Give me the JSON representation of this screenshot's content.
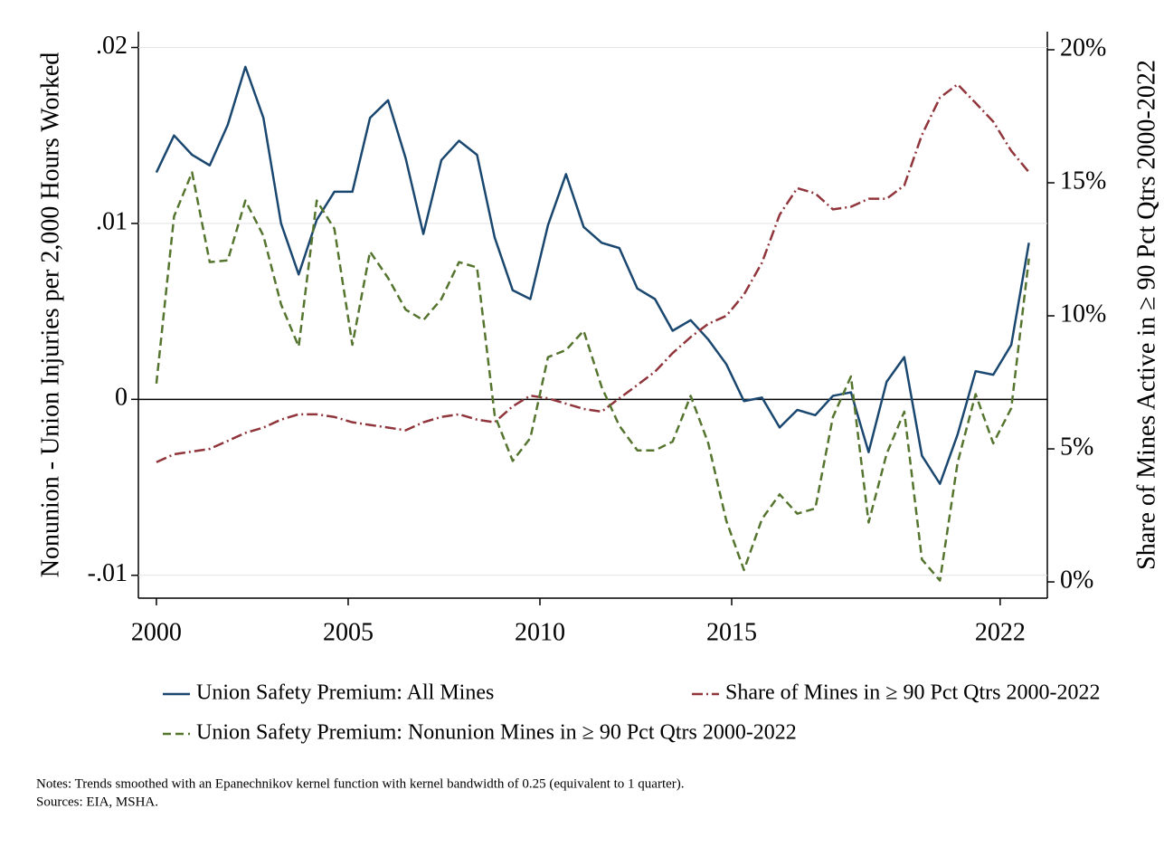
{
  "chart_data": {
    "type": "line",
    "y_label": "Nonunion - Union Injuries per 2,000 Hours Worked",
    "y2_label": "Share of Mines Active in ≥ 90 Pct Qtrs 2000-2022",
    "x": [
      2000.0,
      2000.46,
      2000.93,
      2001.39,
      2001.86,
      2002.32,
      2002.79,
      2003.25,
      2003.71,
      2004.18,
      2004.64,
      2005.11,
      2005.57,
      2006.04,
      2006.5,
      2006.96,
      2007.43,
      2007.89,
      2008.36,
      2008.82,
      2009.29,
      2009.75,
      2010.21,
      2010.68,
      2011.14,
      2011.61,
      2012.07,
      2012.54,
      2013.0,
      2013.46,
      2013.93,
      2014.39,
      2014.86,
      2015.32,
      2015.79,
      2016.25,
      2016.71,
      2017.18,
      2017.64,
      2018.11,
      2018.57,
      2019.04,
      2019.5,
      2019.96,
      2020.43,
      2020.89,
      2021.36,
      2021.82,
      2022.29,
      2022.75
    ],
    "series": [
      {
        "name": "Union Safety Premium: All Mines",
        "color": "#1a476f",
        "dash": "none",
        "values": [
          0.0129,
          0.015,
          0.0139,
          0.0133,
          0.0156,
          0.0189,
          0.016,
          0.01,
          0.0071,
          0.0102,
          0.0118,
          0.0118,
          0.016,
          0.017,
          0.0137,
          0.0094,
          0.0136,
          0.0147,
          0.0139,
          0.0092,
          0.0062,
          0.0057,
          0.0099,
          0.0128,
          0.0098,
          0.0089,
          0.0086,
          0.0063,
          0.0057,
          0.0039,
          0.0045,
          0.0034,
          0.002,
          -0.0001,
          0.0001,
          -0.0016,
          -0.0006,
          -0.0009,
          0.0002,
          0.0004,
          -0.003,
          0.001,
          0.0024,
          -0.0032,
          -0.0048,
          -0.002,
          0.0016,
          0.0014,
          0.0031,
          0.0089
        ]
      },
      {
        "name": "Share of Mines in ≥ 90 Pct Qtrs 2000-2022",
        "color": "#90353b",
        "dash": "12 4 2 4",
        "axis": "y2",
        "values": [
          4.5,
          4.8,
          4.9,
          5.0,
          5.3,
          5.6,
          5.8,
          6.1,
          6.3,
          6.3,
          6.2,
          6.0,
          5.9,
          5.8,
          5.7,
          6.0,
          6.2,
          6.3,
          6.1,
          6.0,
          6.6,
          7.0,
          6.9,
          6.7,
          6.5,
          6.4,
          6.9,
          7.4,
          7.9,
          8.6,
          9.2,
          9.7,
          10.0,
          10.8,
          12.0,
          13.8,
          14.8,
          14.6,
          14.0,
          14.1,
          14.4,
          14.4,
          14.9,
          16.8,
          18.2,
          18.7,
          18.0,
          17.3,
          16.2,
          15.4
        ]
      },
      {
        "name": "Union Safety Premium: Nonunion Mines in ≥ 90 Pct Qtrs 2000-2022",
        "color": "#55752f",
        "dash": "9 5",
        "values": [
          0.0009,
          0.0104,
          0.0129,
          0.0078,
          0.0079,
          0.0113,
          0.0093,
          0.0054,
          0.003,
          0.0113,
          0.0097,
          0.0031,
          0.0084,
          0.0069,
          0.0051,
          0.0045,
          0.0057,
          0.0078,
          0.0075,
          -0.0009,
          -0.0035,
          -0.0022,
          0.0024,
          0.0028,
          0.0039,
          0.0007,
          -0.0015,
          -0.0029,
          -0.0029,
          -0.0024,
          0.0002,
          -0.0025,
          -0.0069,
          -0.0097,
          -0.0068,
          -0.0054,
          -0.0065,
          -0.0062,
          -0.001,
          0.0013,
          -0.007,
          -0.0031,
          -0.0007,
          -0.0091,
          -0.0103,
          -0.0036,
          0.0003,
          -0.0025,
          -0.0005,
          0.008
        ]
      }
    ],
    "xlim": [
      1999.53,
      2023.23
    ],
    "xticks": [
      2000,
      2005,
      2010,
      2015,
      2022
    ],
    "ylim": [
      -0.0113,
      0.0209
    ],
    "yticks": [
      {
        "value": -0.01,
        "label": "-.01"
      },
      0,
      {
        "value": 0.01,
        "label": ".01"
      },
      {
        "value": 0.02,
        "label": ".02"
      }
    ],
    "y2lim": [
      -0.61,
      20.68
    ],
    "y2ticks": [
      {
        "value": 0,
        "label": "0%"
      },
      {
        "value": 5,
        "label": "5%"
      },
      {
        "value": 10,
        "label": "10%"
      },
      {
        "value": 15,
        "label": "15%"
      },
      {
        "value": 20,
        "label": "20%"
      }
    ],
    "grid": true,
    "legend": "bottom",
    "notes": [
      "Notes: Trends smoothed with an Epanechnikov kernel function with kernel bandwidth of 0.25 (equivalent to 1 quarter).",
      "Sources: EIA, MSHA."
    ]
  }
}
